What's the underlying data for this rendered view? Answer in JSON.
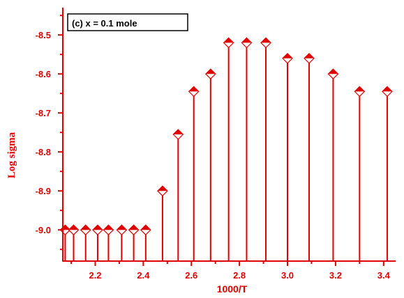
{
  "chart_data": {
    "type": "scatter",
    "style": "stem",
    "annotation": "(c) x = 0.1  mole",
    "xlabel": "1000/T",
    "ylabel": "Log sigma",
    "xlim": [
      2.065,
      3.45
    ],
    "ylim": [
      -9.08,
      -8.43
    ],
    "baseline": -9.08,
    "xticks": [
      2.2,
      2.4,
      2.6,
      2.8,
      3.0,
      3.2,
      3.4
    ],
    "xtick_labels": [
      "2.2",
      "2.4",
      "2.6",
      "2.8",
      "3.0",
      "3.2",
      "3.4"
    ],
    "yticks": [
      -9.0,
      -8.9,
      -8.8,
      -8.7,
      -8.6,
      -8.5
    ],
    "ytick_labels": [
      "-9.0",
      "-8.9",
      "-8.8",
      "-8.7",
      "-8.6",
      "-8.5"
    ],
    "grid": false,
    "color": "#e00000",
    "marker": "diamond",
    "points": [
      {
        "x": 2.075,
        "y": -9.0
      },
      {
        "x": 2.11,
        "y": -9.0
      },
      {
        "x": 2.16,
        "y": -9.0
      },
      {
        "x": 2.21,
        "y": -9.0
      },
      {
        "x": 2.255,
        "y": -9.0
      },
      {
        "x": 2.31,
        "y": -9.0
      },
      {
        "x": 2.36,
        "y": -9.0
      },
      {
        "x": 2.41,
        "y": -9.0
      },
      {
        "x": 2.48,
        "y": -8.9
      },
      {
        "x": 2.545,
        "y": -8.755
      },
      {
        "x": 2.61,
        "y": -8.645
      },
      {
        "x": 2.68,
        "y": -8.6
      },
      {
        "x": 2.755,
        "y": -8.52
      },
      {
        "x": 2.83,
        "y": -8.52
      },
      {
        "x": 2.91,
        "y": -8.52
      },
      {
        "x": 3.0,
        "y": -8.56
      },
      {
        "x": 3.09,
        "y": -8.56
      },
      {
        "x": 3.19,
        "y": -8.6
      },
      {
        "x": 3.3,
        "y": -8.645
      },
      {
        "x": 3.415,
        "y": -8.645
      }
    ]
  }
}
